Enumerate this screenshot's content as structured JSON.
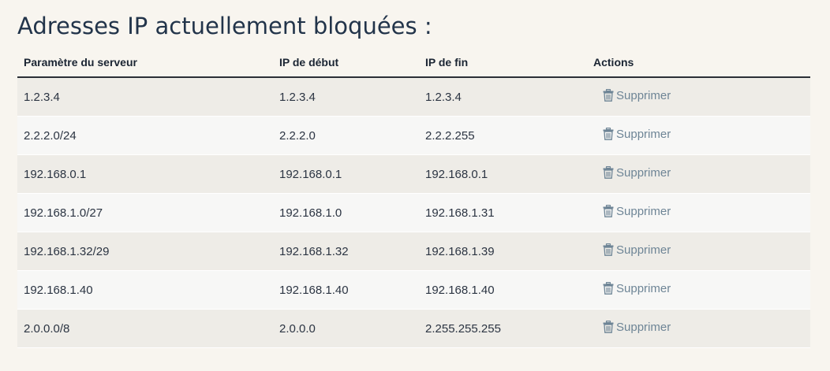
{
  "page_title": "Adresses IP actuellement bloquées :",
  "table": {
    "headers": {
      "param": "Paramètre du serveur",
      "start": "IP de début",
      "end": "IP de fin",
      "actions": "Actions"
    },
    "rows": [
      {
        "param": "1.2.3.4",
        "start": "1.2.3.4",
        "end": "1.2.3.4",
        "action": "Supprimer"
      },
      {
        "param": "2.2.2.0/24",
        "start": "2.2.2.0",
        "end": "2.2.2.255",
        "action": "Supprimer"
      },
      {
        "param": "192.168.0.1",
        "start": "192.168.0.1",
        "end": "192.168.0.1",
        "action": "Supprimer"
      },
      {
        "param": "192.168.1.0/27",
        "start": "192.168.1.0",
        "end": "192.168.1.31",
        "action": "Supprimer"
      },
      {
        "param": "192.168.1.32/29",
        "start": "192.168.1.32",
        "end": "192.168.1.39",
        "action": "Supprimer"
      },
      {
        "param": "192.168.1.40",
        "start": "192.168.1.40",
        "end": "192.168.1.40",
        "action": "Supprimer"
      },
      {
        "param": "2.0.0.0/8",
        "start": "2.0.0.0",
        "end": "2.255.255.255",
        "action": "Supprimer"
      }
    ],
    "action_icon": "trash-icon"
  },
  "colors": {
    "background": "#f8f5ef",
    "row_odd": "#eeece7",
    "row_even": "#f7f7f6",
    "action_link": "#6e8596",
    "title": "#22344a"
  }
}
